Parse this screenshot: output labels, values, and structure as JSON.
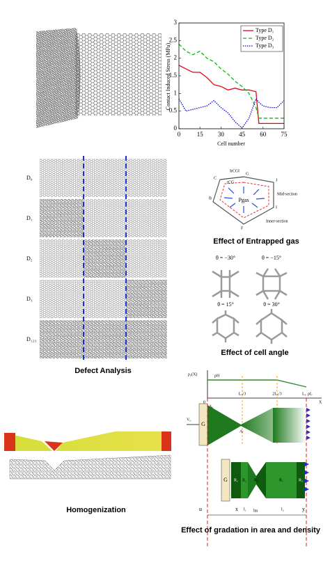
{
  "chart_data": {
    "type": "line",
    "y_label": "Contact Induced Stress (MPa)",
    "x_label": "Cell number",
    "x": [
      0,
      5,
      10,
      15,
      20,
      25,
      30,
      35,
      40,
      45,
      50,
      55,
      57,
      60,
      65,
      70,
      75
    ],
    "series": [
      {
        "name": "Type D₁",
        "color": "#e8000b",
        "dash": "solid",
        "values": [
          1.8,
          1.7,
          1.6,
          1.6,
          1.45,
          1.25,
          1.2,
          1.1,
          1.15,
          1.1,
          1.1,
          1.05,
          0.15,
          0.15,
          0.15,
          0.15,
          0.15
        ]
      },
      {
        "name": "Type D₂",
        "color": "#00c000",
        "dash": "dashed",
        "values": [
          2.4,
          2.2,
          2.1,
          2.2,
          2.0,
          1.9,
          1.7,
          1.55,
          1.35,
          1.2,
          1.0,
          0.6,
          0.3,
          0.3,
          0.3,
          0.3,
          0.3
        ]
      },
      {
        "name": "Type D₃",
        "color": "#0000cc",
        "dash": "dotted",
        "values": [
          0.85,
          0.5,
          0.55,
          0.6,
          0.65,
          0.8,
          0.6,
          0.45,
          0.2,
          0.02,
          0.3,
          0.85,
          0.75,
          0.65,
          0.6,
          0.6,
          0.8
        ]
      }
    ],
    "xlim": [
      0,
      75
    ],
    "xticks": [
      0,
      15,
      30,
      45,
      60,
      75
    ],
    "ylim": [
      0,
      3
    ],
    "yticks": [
      0,
      0.5,
      1,
      1.5,
      2,
      2.5,
      3
    ],
    "legend": "upper right"
  },
  "defect_analysis": {
    "row_labels": [
      "D₀",
      "D₁",
      "D₂",
      "D₃",
      "D₁₂₃"
    ],
    "caption": "Defect Analysis"
  },
  "entrapped_gas": {
    "labels": [
      "‖rCG‖",
      "G",
      "J",
      "C",
      "rCG",
      "Pgas",
      "Mid-section",
      "B",
      "I",
      "Inner-section",
      "F"
    ],
    "caption": "Effect of Entrapped gas"
  },
  "cell_angle": {
    "angles": [
      "θ = −30°",
      "θ = −15°",
      "θ = 15°",
      "θ = 30°"
    ],
    "caption": "Effect of cell angle"
  },
  "homogenization": {
    "caption": "Homogenization"
  },
  "gradation": {
    "labels": [
      "ρ₀(X)",
      "ρH",
      "ρL",
      "0",
      "L₀/3",
      "2L₀/3",
      "L₀",
      "X",
      "A₀",
      "Aₗ",
      "V₀",
      "G",
      "G",
      "R₁",
      "R₂",
      "R₃",
      "R₁",
      "R₂",
      "u",
      "x",
      "l₁",
      "lm",
      "l₂",
      "y"
    ],
    "caption": "Effect of gradation in area and density"
  }
}
